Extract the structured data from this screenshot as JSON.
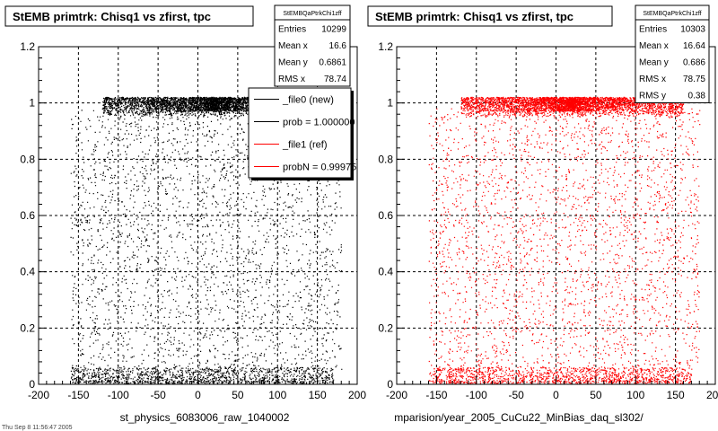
{
  "footer": {
    "text": "Thu Sep  8 11:56:47 2005"
  },
  "chart_data": [
    {
      "type": "scatter",
      "title": "StEMB primtrk: Chisq1 vs zfirst, tpc",
      "xlabel": "st_physics_6083006_raw_1040002",
      "ylabel": "",
      "xlim": [
        -200,
        200
      ],
      "ylim": [
        0,
        1.2
      ],
      "x_ticks": [
        "-200",
        "-150",
        "-100",
        "-50",
        "0",
        "50",
        "100",
        "150",
        "200"
      ],
      "y_ticks": [
        "0",
        "0.2",
        "0.4",
        "0.6",
        "0.8",
        "1",
        "1.2"
      ],
      "grid": true,
      "marker_color": "#000000",
      "stats_box": {
        "title": "StEMBQaPtrkChi1zff",
        "rows": [
          {
            "label": "Entries",
            "value": "10299"
          },
          {
            "label": "Mean x",
            "value": "16.6"
          },
          {
            "label": "Mean y",
            "value": "0.6861"
          },
          {
            "label": "RMS x",
            "value": "78.74"
          }
        ]
      },
      "legend": {
        "placement": "top-right",
        "entries": [
          {
            "label": "_file0 (new)",
            "color": "#000000"
          },
          {
            "label": "prob = 1.000000",
            "color": "#000000"
          },
          {
            "label": "_file1 (ref)",
            "color": "#ff0000"
          },
          {
            "label": "probN = 0.99975",
            "color": "#ff0000"
          }
        ]
      },
      "density": {
        "x_range": [
          -160,
          180
        ],
        "dense_band_y": [
          0.95,
          1.02
        ],
        "bottom_band_y": [
          0.0,
          0.06
        ]
      }
    },
    {
      "type": "scatter",
      "title": "StEMB primtrk: Chisq1 vs zfirst, tpc",
      "xlabel": "mparision/year_2005_CuCu22_MinBias_daq_sl302/",
      "ylabel": "",
      "xlim": [
        -200,
        200
      ],
      "ylim": [
        0,
        1.2
      ],
      "x_ticks": [
        "-200",
        "-150",
        "-100",
        "-50",
        "0",
        "50",
        "100",
        "150",
        "200"
      ],
      "y_ticks": [
        "0",
        "0.2",
        "0.4",
        "0.6",
        "0.8",
        "1",
        "1.2"
      ],
      "grid": true,
      "marker_color": "#ff0000",
      "stats_box": {
        "title": "StEMBQaPtrkChi1zff",
        "rows": [
          {
            "label": "Entries",
            "value": "10303"
          },
          {
            "label": "Mean x",
            "value": "16.64"
          },
          {
            "label": "Mean y",
            "value": "0.686"
          },
          {
            "label": "RMS x",
            "value": "78.75"
          },
          {
            "label": "RMS y",
            "value": "0.38"
          }
        ]
      },
      "density": {
        "x_range": [
          -160,
          180
        ],
        "dense_band_y": [
          0.95,
          1.02
        ],
        "bottom_band_y": [
          0.0,
          0.06
        ]
      }
    }
  ]
}
